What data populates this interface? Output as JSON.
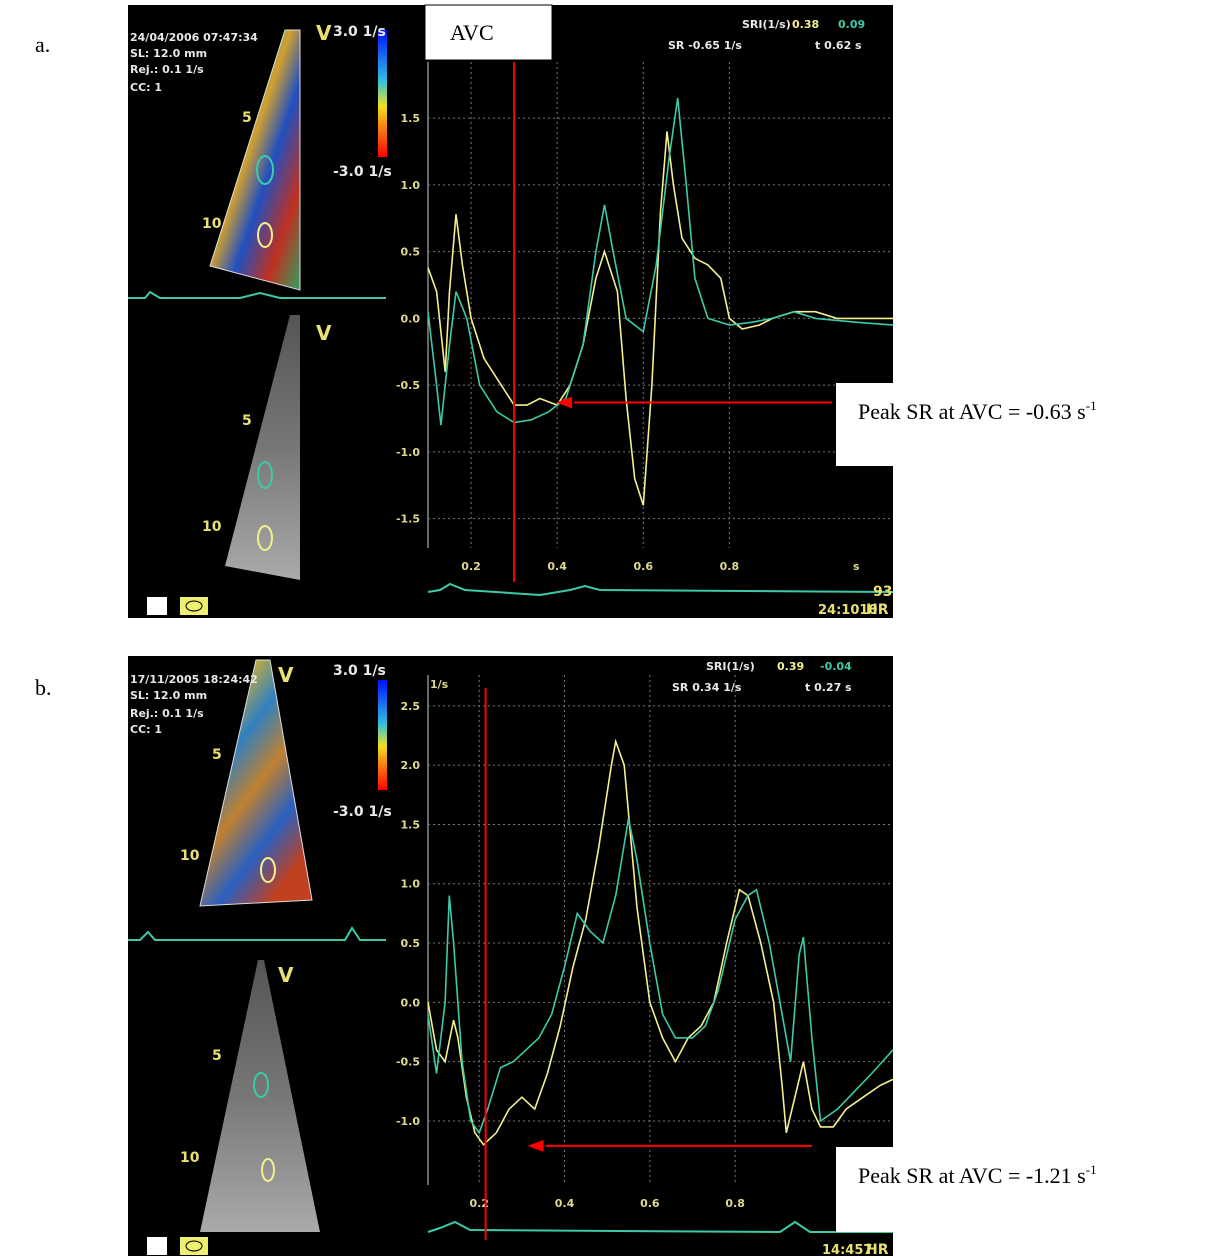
{
  "figure_labels": [
    "a.",
    "b."
  ],
  "chart_data": [
    {
      "type": "line",
      "screen_texts": [
        "24/04/2006 07:47:34",
        "SL: 12.0 mm",
        "Rej.: 0.1 1/s",
        "CC: 1",
        "V",
        "3.0 1/s",
        "-3.0 1/s",
        "5",
        "10",
        "V",
        "5",
        "10",
        "SRI(1/s)",
        "0.38",
        "0.09",
        "SR -0.65 1/s",
        "t 0.62 s",
        "93",
        "24:1010",
        "HR"
      ],
      "x_label": "s",
      "xlim": [
        0.1,
        1.18
      ],
      "ylim": [
        -1.72,
        1.92
      ],
      "xticks": [
        0.2,
        0.4,
        0.6,
        0.8
      ],
      "yticks": [
        1.5,
        {
          "value": 1.0,
          "label": "1.0"
        },
        0.5,
        {
          "value": 0.0,
          "label": "0.0"
        },
        -0.5,
        {
          "value": -1.0,
          "label": "-1.0"
        },
        -1.5
      ],
      "grid": true,
      "avc_label": "AVC",
      "avc_x": 0.3,
      "peak_sr": {
        "value": -0.63,
        "label": "Peak SR at AVC = -0.63 s",
        "sup": "-1"
      },
      "series": [
        {
          "color": "#f4f08c",
          "x": [
            0.1,
            0.12,
            0.14,
            0.15,
            0.165,
            0.18,
            0.2,
            0.23,
            0.27,
            0.3,
            0.33,
            0.36,
            0.4,
            0.43,
            0.46,
            0.49,
            0.51,
            0.54,
            0.56,
            0.58,
            0.6,
            0.62,
            0.64,
            0.655,
            0.67,
            0.69,
            0.72,
            0.75,
            0.78,
            0.8,
            0.83,
            0.87,
            0.9,
            0.95,
            1.0,
            1.05,
            1.1,
            1.15,
            1.18
          ],
          "values": [
            0.38,
            0.2,
            -0.4,
            0.2,
            0.78,
            0.4,
            0.0,
            -0.3,
            -0.5,
            -0.65,
            -0.65,
            -0.6,
            -0.65,
            -0.5,
            -0.2,
            0.3,
            0.5,
            0.2,
            -0.6,
            -1.2,
            -1.4,
            -0.5,
            0.8,
            1.4,
            1.0,
            0.6,
            0.45,
            0.4,
            0.3,
            0.0,
            -0.08,
            -0.05,
            0.0,
            0.05,
            0.05,
            0.0,
            0.0,
            0.0,
            0.0
          ]
        },
        {
          "color": "#3ccaa8",
          "x": [
            0.1,
            0.12,
            0.13,
            0.15,
            0.165,
            0.19,
            0.22,
            0.26,
            0.3,
            0.34,
            0.38,
            0.42,
            0.46,
            0.49,
            0.51,
            0.53,
            0.56,
            0.6,
            0.63,
            0.66,
            0.68,
            0.7,
            0.72,
            0.75,
            0.8,
            0.85,
            0.9,
            0.95,
            1.0,
            1.1,
            1.18
          ],
          "values": [
            0.05,
            -0.5,
            -0.8,
            -0.2,
            0.2,
            0.0,
            -0.5,
            -0.7,
            -0.78,
            -0.76,
            -0.7,
            -0.6,
            -0.2,
            0.5,
            0.85,
            0.5,
            0.0,
            -0.1,
            0.4,
            1.2,
            1.65,
            1.0,
            0.3,
            0.0,
            -0.05,
            -0.03,
            0.0,
            0.05,
            0.0,
            -0.03,
            -0.05
          ]
        }
      ]
    },
    {
      "type": "line",
      "screen_texts": [
        "17/11/2005 18:24:42",
        "SL: 12.0 mm",
        "Rej.: 0.1 1/s",
        "CC: 1",
        "V",
        "3.0 1/s",
        "-3.0 1/s",
        "5",
        "10",
        "V",
        "5",
        "10",
        "SRI(1/s)",
        "0.39",
        "-0.04",
        "SR 0.34 1/s",
        "t 0.27 s",
        "14:457",
        "HR"
      ],
      "y_label": "1/s",
      "xlim": [
        0.08,
        1.17
      ],
      "ylim": [
        -1.54,
        2.76
      ],
      "xticks": [
        0.2,
        0.4,
        0.6,
        0.8
      ],
      "yticks": [
        2.5,
        {
          "value": 2.0,
          "label": "2.0"
        },
        1.5,
        {
          "value": 1.0,
          "label": "1.0"
        },
        0.5,
        {
          "value": 0.0,
          "label": "0.0"
        },
        -0.5,
        {
          "value": -1.0,
          "label": "-1.0"
        }
      ],
      "grid": true,
      "avc_x": 0.215,
      "peak_sr": {
        "value": -1.21,
        "label": "Peak SR at AVC = -1.21 s",
        "sup": "-1"
      },
      "series": [
        {
          "color": "#f4f08c",
          "x": [
            0.08,
            0.1,
            0.12,
            0.14,
            0.15,
            0.17,
            0.19,
            0.21,
            0.24,
            0.27,
            0.3,
            0.33,
            0.36,
            0.39,
            0.42,
            0.45,
            0.48,
            0.51,
            0.52,
            0.54,
            0.57,
            0.6,
            0.63,
            0.66,
            0.69,
            0.72,
            0.75,
            0.78,
            0.81,
            0.83,
            0.86,
            0.89,
            0.91,
            0.92,
            0.94,
            0.96,
            0.98,
            1.0,
            1.03,
            1.06,
            1.1,
            1.14,
            1.17
          ],
          "values": [
            0.0,
            -0.4,
            -0.5,
            -0.15,
            -0.3,
            -0.8,
            -1.1,
            -1.2,
            -1.1,
            -0.9,
            -0.8,
            -0.9,
            -0.6,
            -0.2,
            0.3,
            0.7,
            1.3,
            2.0,
            2.2,
            2.0,
            0.8,
            0.0,
            -0.3,
            -0.5,
            -0.3,
            -0.2,
            0.0,
            0.5,
            0.95,
            0.9,
            0.5,
            0.0,
            -0.7,
            -1.1,
            -0.8,
            -0.5,
            -0.9,
            -1.05,
            -1.05,
            -0.9,
            -0.8,
            -0.7,
            -0.65
          ]
        },
        {
          "color": "#3ccaa8",
          "x": [
            0.08,
            0.1,
            0.12,
            0.13,
            0.14,
            0.16,
            0.18,
            0.2,
            0.22,
            0.25,
            0.28,
            0.31,
            0.34,
            0.37,
            0.4,
            0.43,
            0.46,
            0.49,
            0.52,
            0.55,
            0.57,
            0.6,
            0.63,
            0.66,
            0.7,
            0.73,
            0.76,
            0.8,
            0.83,
            0.85,
            0.88,
            0.91,
            0.93,
            0.95,
            0.96,
            0.98,
            1.0,
            1.04,
            1.08,
            1.12,
            1.17
          ],
          "values": [
            -0.1,
            -0.6,
            0.0,
            0.9,
            0.5,
            -0.5,
            -1.0,
            -1.1,
            -0.9,
            -0.55,
            -0.5,
            -0.4,
            -0.3,
            -0.1,
            0.3,
            0.75,
            0.6,
            0.5,
            0.9,
            1.55,
            1.2,
            0.5,
            -0.1,
            -0.3,
            -0.3,
            -0.2,
            0.1,
            0.7,
            0.9,
            0.95,
            0.5,
            -0.1,
            -0.5,
            0.4,
            0.55,
            -0.3,
            -1.0,
            -0.9,
            -0.75,
            -0.6,
            -0.4
          ]
        }
      ]
    }
  ]
}
